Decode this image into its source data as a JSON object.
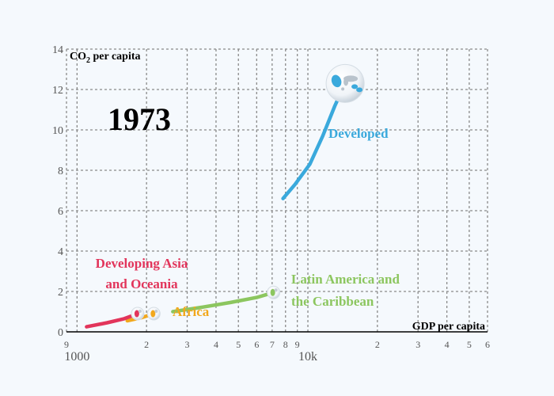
{
  "chart_data": {
    "type": "line",
    "year": "1973",
    "ylabel_prefix": "CO",
    "ylabel_sub": "2",
    "ylabel_suffix": " per capita",
    "xlabel": "GDP per capita",
    "x_scale": "log",
    "xlim": [
      900,
      60000
    ],
    "ylim": [
      0,
      14
    ],
    "y_ticks": [
      0,
      2,
      4,
      6,
      8,
      10,
      12,
      14
    ],
    "x_ticks": [
      {
        "value": 900,
        "label": "9"
      },
      {
        "value": 1000,
        "label": "1000"
      },
      {
        "value": 2000,
        "label": "2"
      },
      {
        "value": 3000,
        "label": "3"
      },
      {
        "value": 4000,
        "label": "4"
      },
      {
        "value": 5000,
        "label": "5"
      },
      {
        "value": 6000,
        "label": "6"
      },
      {
        "value": 7000,
        "label": "7"
      },
      {
        "value": 8000,
        "label": "8"
      },
      {
        "value": 9000,
        "label": "9"
      },
      {
        "value": 10000,
        "label": "10k"
      },
      {
        "value": 20000,
        "label": "2"
      },
      {
        "value": 30000,
        "label": "3"
      },
      {
        "value": 40000,
        "label": "4"
      },
      {
        "value": 50000,
        "label": "5"
      },
      {
        "value": 60000,
        "label": "6"
      }
    ],
    "grid": true,
    "series": [
      {
        "name": "Developed",
        "color": "#3aa9dc",
        "icon": "globe-developed-icon",
        "points": [
          [
            7800,
            6.6
          ],
          [
            8800,
            7.3
          ],
          [
            10200,
            8.3
          ],
          [
            11600,
            9.7
          ],
          [
            13100,
            11.2
          ],
          [
            14500,
            12.3
          ]
        ]
      },
      {
        "name": "Latin America and the Caribbean",
        "color": "#8cc65f",
        "icon": "globe-latin-america-icon",
        "points": [
          [
            2600,
            1.0
          ],
          [
            3400,
            1.2
          ],
          [
            4600,
            1.45
          ],
          [
            6000,
            1.7
          ],
          [
            7100,
            1.95
          ]
        ]
      },
      {
        "name": "Africa",
        "color": "#f2a81c",
        "icon": "globe-africa-icon",
        "points": [
          [
            1650,
            0.55
          ],
          [
            1900,
            0.7
          ],
          [
            2150,
            0.9
          ]
        ]
      },
      {
        "name": "Developing Asia and Oceania",
        "color": "#e2355b",
        "icon": "globe-asia-icon",
        "points": [
          [
            1100,
            0.25
          ],
          [
            1350,
            0.45
          ],
          [
            1600,
            0.65
          ],
          [
            1830,
            0.9
          ]
        ]
      }
    ],
    "labels": [
      {
        "series": 0,
        "lines": [
          "Developed"
        ]
      },
      {
        "series": 1,
        "lines": [
          "Latin America and",
          "the Caribbean"
        ]
      },
      {
        "series": 2,
        "lines": [
          "Africa"
        ]
      },
      {
        "series": 3,
        "lines": [
          "Developing Asia",
          "and Oceania"
        ]
      }
    ]
  }
}
